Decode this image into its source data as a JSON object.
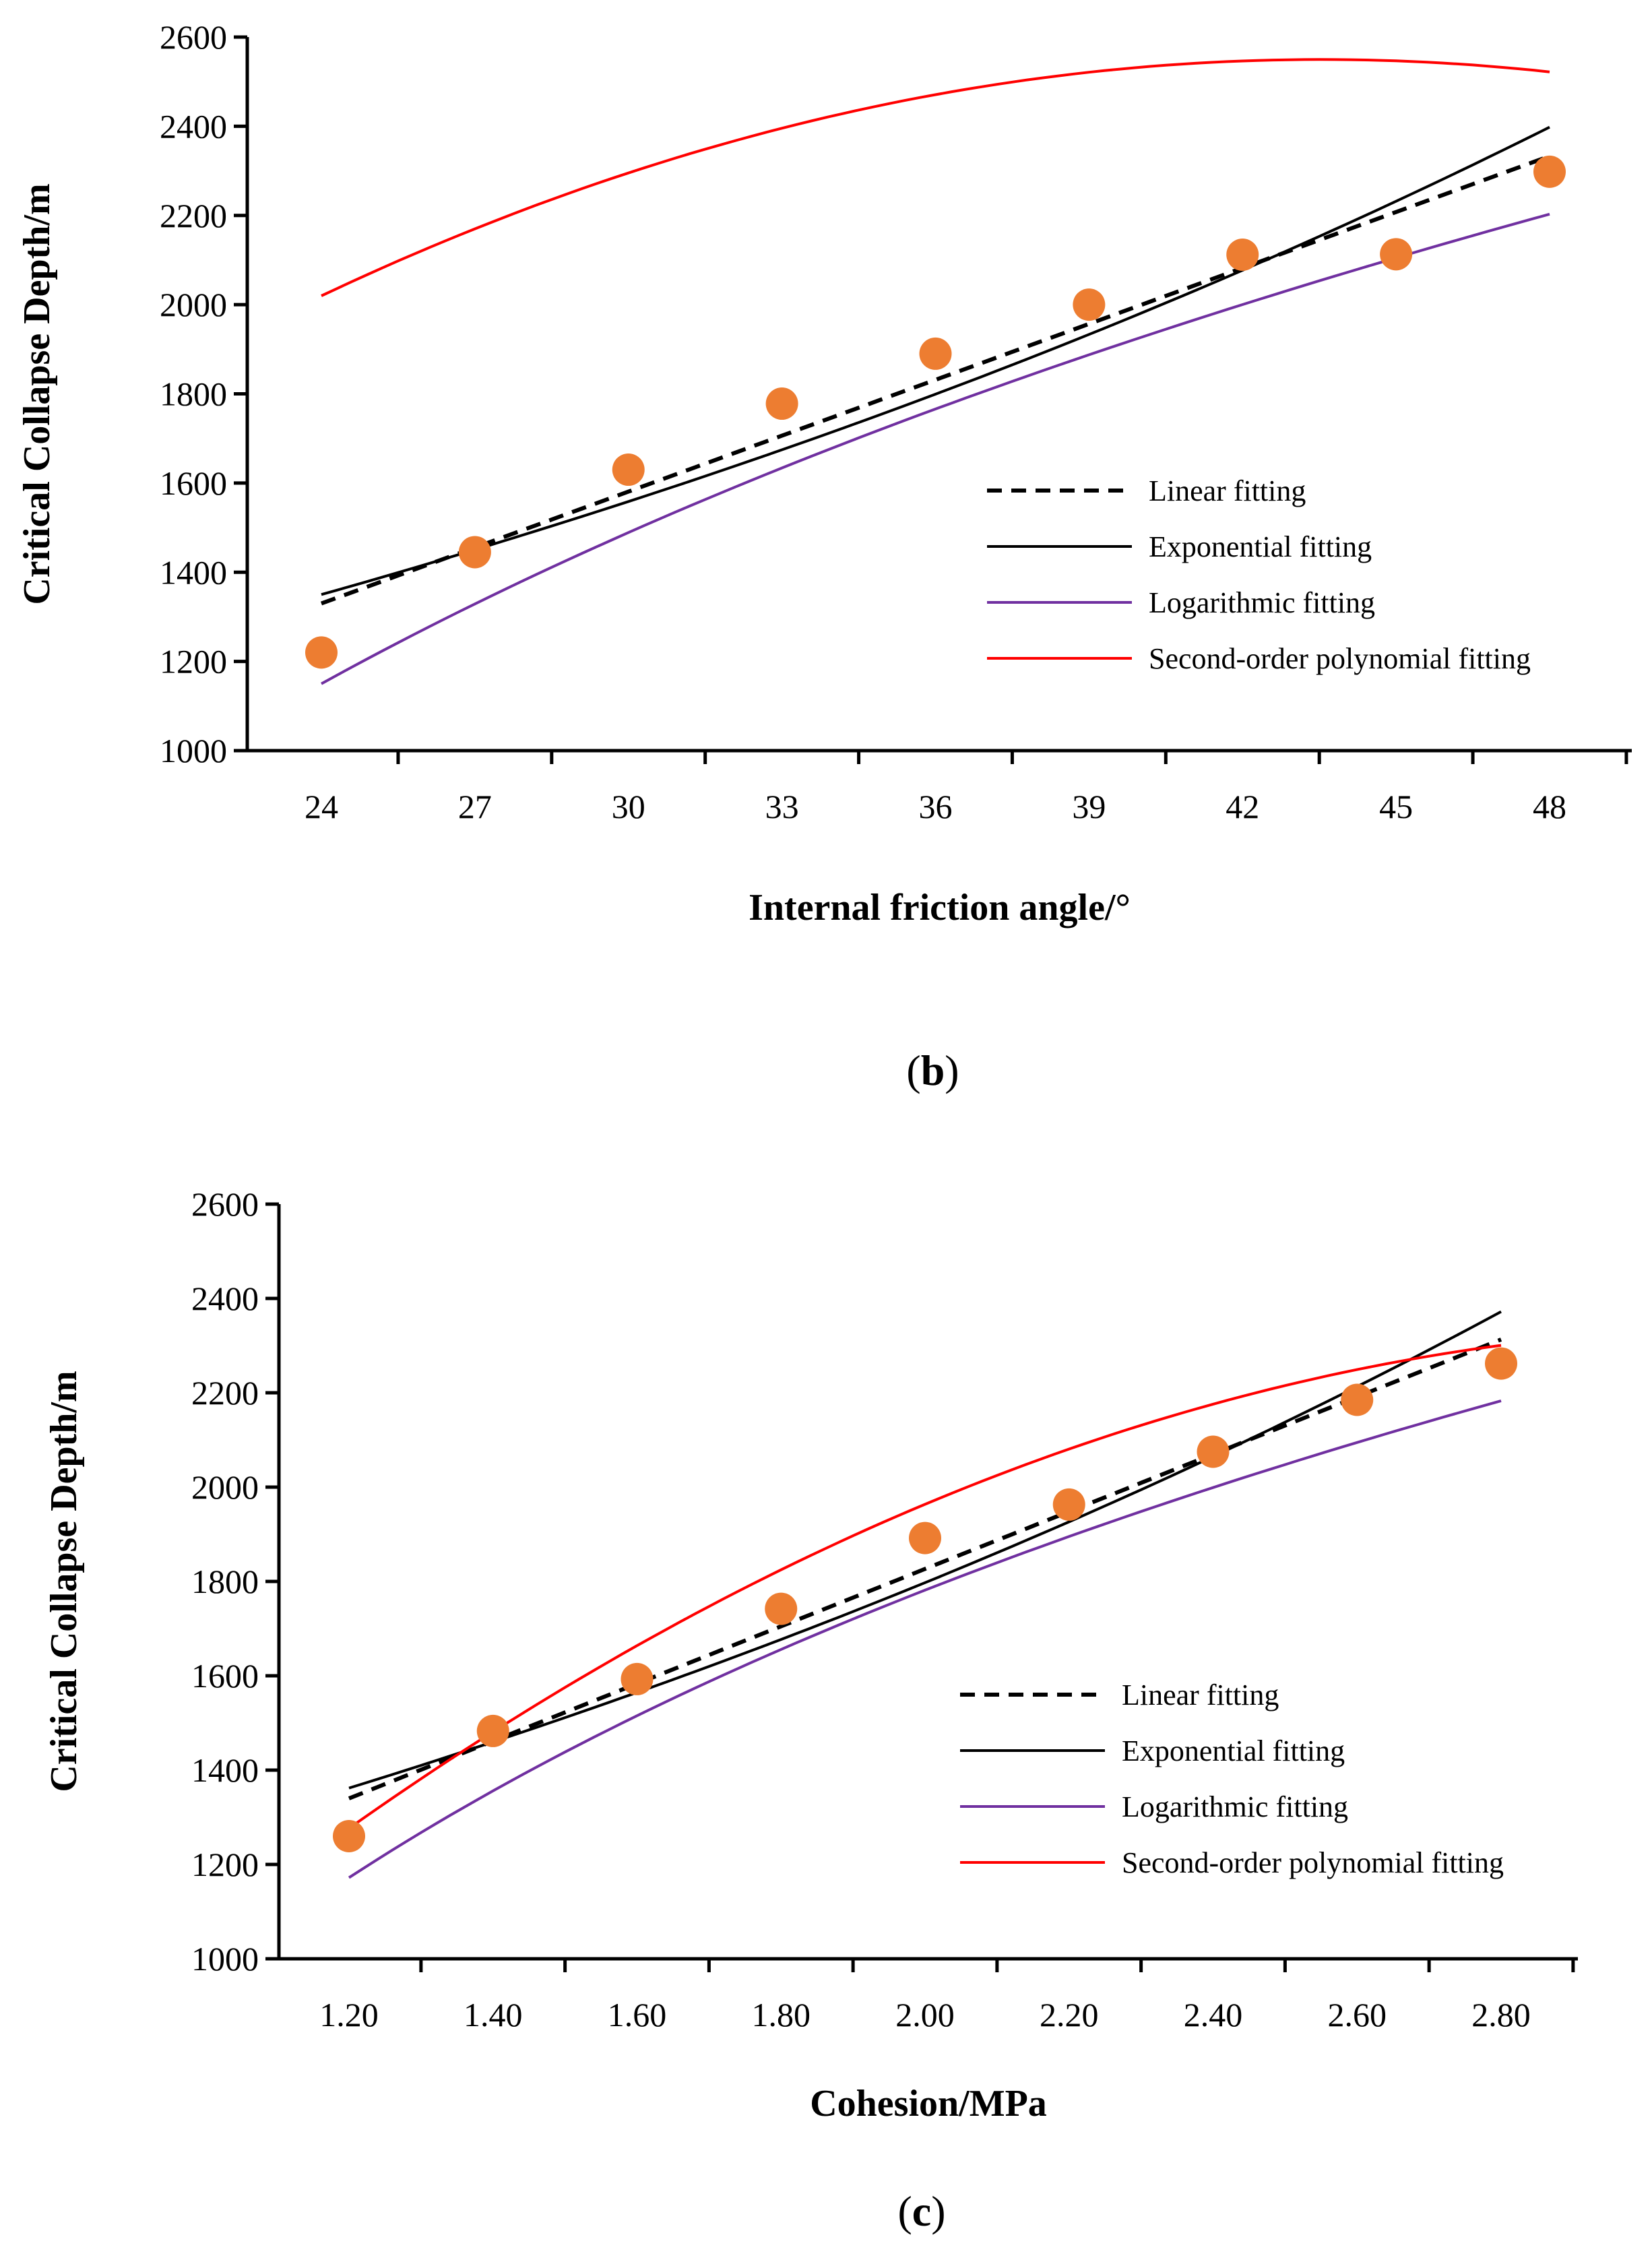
{
  "colors": {
    "linear": "#000000",
    "exponential": "#000000",
    "logarithmic": "#7030a0",
    "polynomial": "#ff0000",
    "points": "#ed7d31"
  },
  "chart_data": [
    {
      "type": "scatter",
      "panel": "b",
      "caption_open": "(",
      "caption_letter": "b",
      "caption_close": ")",
      "xlabel": "Internal friction angle/°",
      "ylabel": "Critical Collapse Depth/m",
      "x": [
        24,
        27,
        30,
        33,
        36,
        39,
        42,
        45,
        48
      ],
      "x_ticks": [
        "24",
        "27",
        "30",
        "33",
        "36",
        "39",
        "42",
        "45",
        "48"
      ],
      "y_ticks": [
        "1000",
        "1200",
        "1400",
        "1600",
        "1800",
        "2000",
        "2200",
        "2400",
        "2600"
      ],
      "ylim": [
        1000,
        2600
      ],
      "points": [
        1220,
        1445,
        1630,
        1778,
        1890,
        2000,
        2112,
        2113,
        2298
      ],
      "legend": [
        "Linear fitting",
        "Exponential fitting",
        "Logarithmic fitting",
        "Second-order polynomial fitting"
      ],
      "fits": {
        "linear": {
          "x0": 24,
          "x1": 48,
          "y0": 1330,
          "y1": 2333
        },
        "exponential": {
          "x0": 24,
          "x1": 48,
          "y0": 1350,
          "y1": 2398
        },
        "logarithmic": {
          "x0": 24,
          "x1": 48,
          "y0": 1150,
          "y1": 2203
        },
        "polynomial": {
          "a": -1.389,
          "b": 120.93,
          "c": -82.5
        }
      }
    },
    {
      "type": "scatter",
      "panel": "c",
      "caption_open": "(",
      "caption_letter": "c",
      "caption_close": ")",
      "xlabel": "Cohesion/MPa",
      "ylabel": "Critical Collapse Depth/m",
      "x": [
        1.2,
        1.4,
        1.6,
        1.8,
        2.0,
        2.2,
        2.4,
        2.6,
        2.8
      ],
      "x_ticks": [
        "1.20",
        "1.40",
        "1.60",
        "1.80",
        "2.00",
        "2.20",
        "2.40",
        "2.60",
        "2.80"
      ],
      "y_ticks": [
        "1000",
        "1200",
        "1400",
        "1600",
        "1800",
        "2000",
        "2200",
        "2400",
        "2600"
      ],
      "ylim": [
        1000,
        2600
      ],
      "points": [
        1260,
        1483,
        1593,
        1742,
        1892,
        1963,
        2075,
        2185,
        2262
      ],
      "legend": [
        "Linear fitting",
        "Exponential fitting",
        "Logarithmic fitting",
        "Second-order polynomial fitting"
      ],
      "fits": {
        "linear": {
          "x0": 1.2,
          "x1": 2.8,
          "y0": 1340,
          "y1": 2313
        },
        "exponential": {
          "x0": 1.2,
          "x1": 2.8,
          "y0": 1362,
          "y1": 2372
        },
        "logarithmic": {
          "x0": 1.2,
          "x1": 2.8,
          "y0": 1172,
          "y1": 2183
        },
        "polynomial": {
          "a": -273.4,
          "b": 1733.6,
          "c": -410
        }
      }
    }
  ]
}
